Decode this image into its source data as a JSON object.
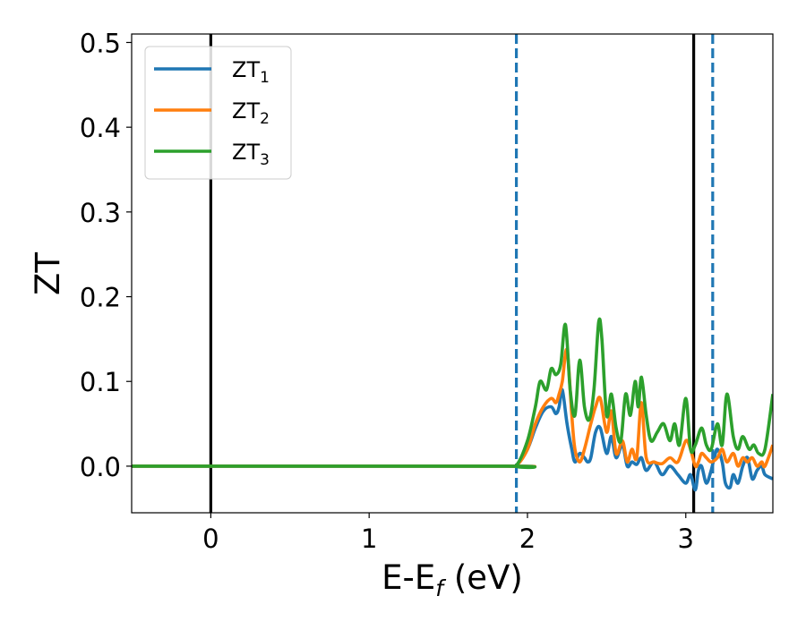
{
  "chart_data": {
    "type": "line",
    "title": "",
    "xlabel": "E-E",
    "xlabel_sub": "f",
    "xlabel_unit": " (eV)",
    "ylabel": "ZT",
    "xlim": [
      -0.5,
      3.55
    ],
    "ylim": [
      -0.055,
      0.51
    ],
    "xticks": [
      0,
      1,
      2,
      3
    ],
    "yticks": [
      0.0,
      0.1,
      0.2,
      0.3,
      0.4,
      0.5
    ],
    "xtick_labels": [
      "0",
      "1",
      "2",
      "3"
    ],
    "ytick_labels": [
      "0.0",
      "0.1",
      "0.2",
      "0.3",
      "0.4",
      "0.5"
    ],
    "grid": false,
    "legend": {
      "position": "top-left"
    },
    "vlines": [
      {
        "x": 0.0,
        "style": "solid",
        "color": "#000000"
      },
      {
        "x": 3.05,
        "style": "solid",
        "color": "#000000"
      },
      {
        "x": 1.93,
        "style": "dashed",
        "color": "#1f77b4"
      },
      {
        "x": 3.17,
        "style": "dashed",
        "color": "#1f77b4"
      }
    ],
    "series": [
      {
        "name": "ZT",
        "subscript": "1",
        "color": "#1f77b4",
        "x": [
          -0.5,
          1.85,
          1.93,
          2.0,
          2.05,
          2.1,
          2.15,
          2.18,
          2.2,
          2.22,
          2.25,
          2.28,
          2.3,
          2.33,
          2.36,
          2.38,
          2.4,
          2.43,
          2.46,
          2.5,
          2.53,
          2.56,
          2.6,
          2.63,
          2.66,
          2.69,
          2.72,
          2.75,
          2.8,
          2.85,
          2.9,
          2.95,
          3.0,
          3.03,
          3.06,
          3.08,
          3.1,
          3.13,
          3.16,
          3.18,
          3.2,
          3.23,
          3.25,
          3.28,
          3.3,
          3.33,
          3.36,
          3.39,
          3.42,
          3.45,
          3.48,
          3.5,
          3.55
        ],
        "y": [
          0.0,
          0.0,
          0.001,
          0.02,
          0.045,
          0.065,
          0.07,
          0.062,
          0.07,
          0.09,
          0.05,
          0.02,
          0.005,
          0.015,
          0.01,
          0.005,
          0.01,
          0.04,
          0.045,
          0.015,
          0.035,
          0.01,
          0.025,
          0.0,
          0.005,
          0.002,
          0.01,
          -0.005,
          0.005,
          -0.01,
          0.0,
          -0.01,
          -0.02,
          -0.01,
          -0.028,
          -0.005,
          0.0,
          -0.02,
          -0.005,
          0.01,
          0.02,
          0.005,
          -0.02,
          -0.025,
          -0.01,
          -0.02,
          0.0,
          0.01,
          -0.015,
          -0.005,
          0.0,
          -0.01,
          -0.015
        ]
      },
      {
        "name": "ZT",
        "subscript": "2",
        "color": "#ff7f0e",
        "x": [
          -0.5,
          1.85,
          1.93,
          2.0,
          2.05,
          2.1,
          2.15,
          2.18,
          2.2,
          2.22,
          2.25,
          2.28,
          2.3,
          2.33,
          2.36,
          2.4,
          2.43,
          2.46,
          2.5,
          2.53,
          2.56,
          2.6,
          2.63,
          2.66,
          2.69,
          2.72,
          2.75,
          2.8,
          2.85,
          2.9,
          2.95,
          3.0,
          3.03,
          3.06,
          3.08,
          3.1,
          3.13,
          3.16,
          3.2,
          3.23,
          3.26,
          3.3,
          3.33,
          3.36,
          3.39,
          3.42,
          3.45,
          3.48,
          3.5,
          3.55
        ],
        "y": [
          0.0,
          0.0,
          0.001,
          0.02,
          0.05,
          0.07,
          0.08,
          0.075,
          0.085,
          0.1,
          0.137,
          0.06,
          0.02,
          0.005,
          0.02,
          0.05,
          0.07,
          0.08,
          0.04,
          0.065,
          0.015,
          0.03,
          0.005,
          0.02,
          0.01,
          0.075,
          0.01,
          0.005,
          0.003,
          0.01,
          0.005,
          0.03,
          0.02,
          0.0,
          0.005,
          0.015,
          0.01,
          0.005,
          0.01,
          0.02,
          0.005,
          0.015,
          0.0,
          0.01,
          0.005,
          0.01,
          0.0,
          0.005,
          0.0,
          0.025
        ]
      },
      {
        "name": "ZT",
        "subscript": "3",
        "color": "#2ca02c",
        "x": [
          -0.5,
          1.85,
          1.93,
          2.0,
          2.05,
          2.08,
          2.12,
          2.15,
          2.18,
          2.21,
          2.24,
          2.27,
          2.3,
          2.33,
          2.36,
          2.39,
          2.42,
          2.45,
          2.47,
          2.5,
          2.53,
          2.56,
          2.59,
          2.62,
          2.65,
          2.68,
          2.7,
          2.72,
          2.75,
          2.78,
          2.82,
          2.86,
          2.9,
          2.93,
          2.96,
          3.0,
          3.03,
          3.06,
          3.1,
          3.13,
          3.16,
          3.2,
          3.23,
          3.26,
          3.3,
          3.33,
          3.36,
          3.4,
          3.43,
          3.46,
          3.5,
          3.55
        ],
        "y": [
          0.0,
          0.0,
          0.001,
          0.03,
          0.07,
          0.1,
          0.09,
          0.115,
          0.108,
          0.12,
          0.167,
          0.09,
          0.06,
          0.125,
          0.07,
          0.055,
          0.09,
          0.17,
          0.15,
          0.06,
          0.085,
          0.045,
          0.03,
          0.085,
          0.06,
          0.1,
          0.07,
          0.105,
          0.06,
          0.03,
          0.04,
          0.05,
          0.03,
          0.05,
          0.025,
          0.08,
          0.02,
          0.025,
          0.045,
          0.025,
          0.02,
          0.05,
          0.025,
          0.085,
          0.035,
          0.02,
          0.035,
          0.02,
          0.025,
          0.015,
          0.02,
          0.085
        ]
      }
    ]
  }
}
